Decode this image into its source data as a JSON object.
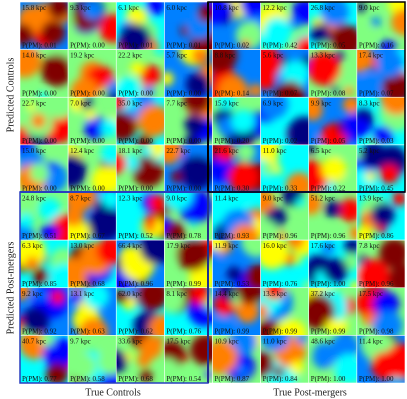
{
  "axes": {
    "y_top": "Predicted Controls",
    "y_bottom": "Predicted Post-mergers",
    "x_left": "True Controls",
    "x_right": "True Post-mergers"
  },
  "panels": [
    [
      {
        "scale": "15.8 kpc",
        "prob": "P(PM): 0.01"
      },
      {
        "scale": "9.3 kpc",
        "prob": "P(PM): 0.00"
      },
      {
        "scale": "6.1 kpc",
        "prob": "P(PM): 0.01"
      },
      {
        "scale": "6.0 kpc",
        "prob": "P(PM): 0.01"
      },
      {
        "scale": "10.8 kpc",
        "prob": "P(PM): 0.02"
      },
      {
        "scale": "12.2 kpc",
        "prob": "P(PM): 0.42"
      },
      {
        "scale": "26.8 kpc",
        "prob": "P(PM): 0.05"
      },
      {
        "scale": "9.0 kpc",
        "prob": "P(PM): 0.16"
      }
    ],
    [
      {
        "scale": "14.0 kpc",
        "prob": "P(PM): 0.00"
      },
      {
        "scale": "19.2 kpc",
        "prob": "P(PM): 0.00"
      },
      {
        "scale": "22.2 kpc",
        "prob": "P(PM): 0.00"
      },
      {
        "scale": "5.7 kpc",
        "prob": "P(PM): 0.00"
      },
      {
        "scale": "8.8 kpc",
        "prob": "P(PM): 0.14"
      },
      {
        "scale": "5.6 kpc",
        "prob": "P(PM): 0.07"
      },
      {
        "scale": "13.3 kpc",
        "prob": "P(PM): 0.08"
      },
      {
        "scale": "17.4 kpc",
        "prob": "P(PM): 0.07"
      }
    ],
    [
      {
        "scale": "22.7 kpc",
        "prob": "P(PM): 0.00"
      },
      {
        "scale": "7.0 kpc",
        "prob": "P(PM): 0.00"
      },
      {
        "scale": "35.0 kpc",
        "prob": "P(PM): 0.00"
      },
      {
        "scale": "7.7 kpc",
        "prob": "P(PM): 0.00"
      },
      {
        "scale": "15.9 kpc",
        "prob": "P(PM): 0.20"
      },
      {
        "scale": "6.9 kpc",
        "prob": "P(PM): 0.02"
      },
      {
        "scale": "9.9 kpc",
        "prob": "P(PM): 0.05"
      },
      {
        "scale": "8.3 kpc",
        "prob": "P(PM): 0.03"
      }
    ],
    [
      {
        "scale": "15.0 kpc",
        "prob": "P(PM): 0.00"
      },
      {
        "scale": "12.4 kpc",
        "prob": "P(PM): 0.00"
      },
      {
        "scale": "18.1 kpc",
        "prob": "P(PM): 0.00"
      },
      {
        "scale": "22.7 kpc",
        "prob": "P(PM): 0.00"
      },
      {
        "scale": "21.6 kpc",
        "prob": "P(PM): 0.30"
      },
      {
        "scale": "11.0 kpc",
        "prob": "P(PM): 0.33"
      },
      {
        "scale": "6.5 kpc",
        "prob": "P(PM): 0.22"
      },
      {
        "scale": "5.2 kpc",
        "prob": "P(PM): 0.45"
      }
    ],
    [
      {
        "scale": "24.8 kpc",
        "prob": "P(PM): 0.51"
      },
      {
        "scale": "8.7 kpc",
        "prob": "P(PM): 0.67"
      },
      {
        "scale": "12.3 kpc",
        "prob": "P(PM): 0.52"
      },
      {
        "scale": "9.0 kpc",
        "prob": "P(PM): 0.78"
      },
      {
        "scale": "11.4 kpc",
        "prob": "P(PM): 0.93"
      },
      {
        "scale": "9.0 kpc",
        "prob": "P(PM): 0.96"
      },
      {
        "scale": "51.2 kpc",
        "prob": "P(PM): 0.96"
      },
      {
        "scale": "13.9 kpc",
        "prob": "P(PM): 0.86"
      }
    ],
    [
      {
        "scale": "6.3 kpc",
        "prob": "P(PM): 0.85"
      },
      {
        "scale": "13.0 kpc",
        "prob": "P(PM): 0.68"
      },
      {
        "scale": "66.4 kpc",
        "prob": "P(PM): 0.96"
      },
      {
        "scale": "17.9 kpc",
        "prob": "P(PM): 0.99"
      },
      {
        "scale": "11.9 kpc",
        "prob": "P(PM): 0.53"
      },
      {
        "scale": "16.0 kpc",
        "prob": "P(PM): 0.76"
      },
      {
        "scale": "17.6 kpc",
        "prob": "P(PM): 1.00"
      },
      {
        "scale": "7.8 kpc",
        "prob": "P(PM): 0.96"
      }
    ],
    [
      {
        "scale": "9.2 kpc",
        "prob": "P(PM): 0.92"
      },
      {
        "scale": "13.1 kpc",
        "prob": "P(PM): 0.63"
      },
      {
        "scale": "62.0 kpc",
        "prob": "P(PM): 0.62"
      },
      {
        "scale": "8.1 kpc",
        "prob": "P(PM): 0.76"
      },
      {
        "scale": "14.4 kpc",
        "prob": "P(PM): 0.99"
      },
      {
        "scale": "13.5 kpc",
        "prob": "P(PM): 0.99"
      },
      {
        "scale": "37.2 kpc",
        "prob": "P(PM): 0.99"
      },
      {
        "scale": "17.5 kpc",
        "prob": "P(PM): 0.98"
      }
    ],
    [
      {
        "scale": "40.7 kpc",
        "prob": "P(PM): 0.77"
      },
      {
        "scale": "9.7 kpc",
        "prob": "P(PM): 0.58"
      },
      {
        "scale": "33.6 kpc",
        "prob": "P(PM): 0.68"
      },
      {
        "scale": "17.5 kpc",
        "prob": "P(PM): 0.54"
      },
      {
        "scale": "10.9 kpc",
        "prob": "P(PM): 0.87"
      },
      {
        "scale": "11.0 kpc",
        "prob": "P(PM): 0.84"
      },
      {
        "scale": "48.6 kpc",
        "prob": "P(PM): 1.00"
      },
      {
        "scale": "11.4 kpc",
        "prob": "P(PM): 1.00"
      }
    ]
  ]
}
